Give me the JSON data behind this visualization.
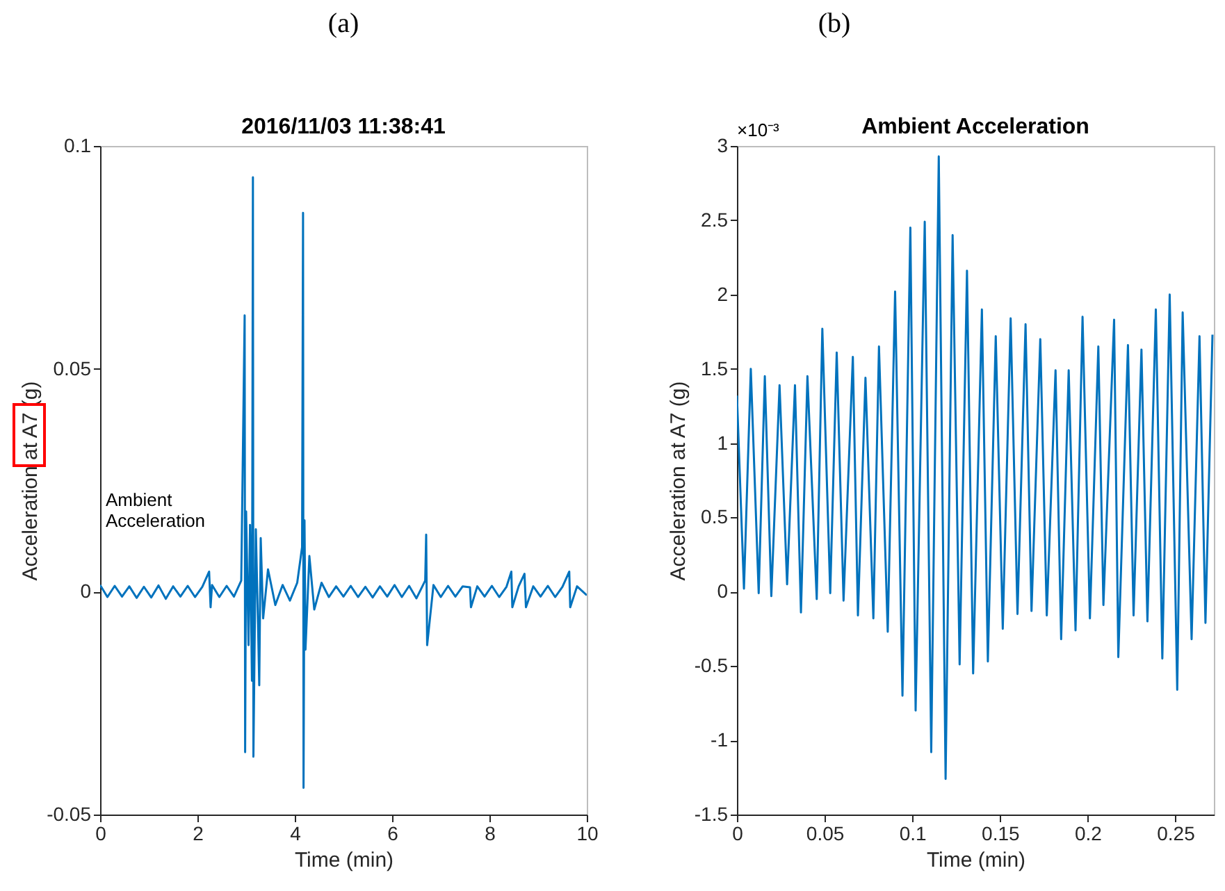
{
  "chart_data": [
    {
      "type": "line",
      "title": "2016/11/03 11:38:41",
      "xlabel": "Time (min)",
      "ylabel": "Acceleration at A7 (g)",
      "annotations": [
        "(a)",
        "Ambient Acceleration"
      ],
      "xlim": [
        0,
        10
      ],
      "xticks": [
        0,
        2,
        4,
        6,
        8,
        10
      ],
      "ylim": [
        -0.05,
        0.1
      ],
      "yticks": [
        -0.05,
        0,
        0.05,
        0.1
      ],
      "grid": false,
      "series": [
        {
          "color": "#0072bd",
          "x": [
            0,
            0.15,
            0.3,
            0.45,
            0.6,
            0.75,
            0.9,
            1.05,
            1.2,
            1.35,
            1.5,
            1.65,
            1.8,
            1.95,
            2.1,
            2.24,
            2.27,
            2.3,
            2.45,
            2.6,
            2.75,
            2.9,
            2.97,
            2.98,
            3.0,
            3.05,
            3.08,
            3.12,
            3.14,
            3.15,
            3.2,
            3.25,
            3.27,
            3.3,
            3.35,
            3.45,
            3.6,
            3.75,
            3.9,
            4.05,
            4.15,
            4.17,
            4.18,
            4.2,
            4.22,
            4.3,
            4.4,
            4.55,
            4.7,
            4.85,
            5.0,
            5.15,
            5.3,
            5.45,
            5.6,
            5.75,
            5.9,
            6.05,
            6.2,
            6.35,
            6.5,
            6.68,
            6.7,
            6.72,
            6.85,
            7.0,
            7.15,
            7.3,
            7.45,
            7.6,
            7.62,
            7.75,
            7.9,
            8.05,
            8.2,
            8.35,
            8.45,
            8.47,
            8.6,
            8.72,
            8.75,
            8.9,
            9.05,
            9.2,
            9.35,
            9.5,
            9.64,
            9.66,
            9.8,
            10
          ],
          "values": [
            0.0015,
            -0.0012,
            0.0013,
            -0.0011,
            0.0012,
            -0.0014,
            0.0011,
            -0.0013,
            0.0014,
            -0.0016,
            0.0012,
            -0.0011,
            0.0013,
            -0.0012,
            0.0011,
            0.0045,
            -0.0035,
            0.0015,
            -0.0012,
            0.0013,
            -0.0011,
            0.0025,
            0.062,
            -0.036,
            0.018,
            -0.012,
            0.015,
            -0.02,
            0.093,
            -0.037,
            0.014,
            -0.01,
            -0.021,
            0.012,
            -0.006,
            0.005,
            -0.003,
            0.0015,
            -0.002,
            0.002,
            0.01,
            0.085,
            -0.044,
            0.016,
            -0.013,
            0.008,
            -0.004,
            0.002,
            -0.0012,
            0.0012,
            -0.0011,
            0.0013,
            -0.0012,
            0.0011,
            -0.0013,
            0.0012,
            -0.0011,
            0.0015,
            -0.0012,
            0.0013,
            -0.0015,
            0.0025,
            0.0128,
            -0.012,
            0.0015,
            -0.0012,
            0.0013,
            -0.0011,
            0.0012,
            0.001,
            -0.0035,
            0.0012,
            -0.0011,
            0.0013,
            -0.0012,
            0.0011,
            0.0045,
            -0.0035,
            0.0012,
            0.004,
            -0.0035,
            0.0012,
            -0.0011,
            0.0013,
            -0.0012,
            0.0011,
            0.0045,
            -0.0035,
            0.0012,
            -0.0008
          ]
        }
      ]
    },
    {
      "type": "line",
      "title": "Ambient Acceleration",
      "xlabel": "Time (min)",
      "ylabel": "Acceleration at A7 (g)",
      "annotations": [
        "(b)",
        "×10⁻³"
      ],
      "xlim": [
        0,
        0.272
      ],
      "xticks": [
        0,
        0.05,
        0.1,
        0.15,
        0.2,
        0.25
      ],
      "ylim": [
        -1.5,
        3
      ],
      "yticks": [
        -1.5,
        -1,
        -0.5,
        0,
        0.5,
        1,
        1.5,
        2,
        2.5,
        3
      ],
      "grid": false,
      "series": [
        {
          "color": "#0072bd",
          "x": [
            0,
            0.004,
            0.0079,
            0.0124,
            0.0159,
            0.0196,
            0.0243,
            0.0286,
            0.0331,
            0.0365,
            0.0402,
            0.0455,
            0.0487,
            0.0532,
            0.0569,
            0.0608,
            0.0661,
            0.069,
            0.0733,
            0.0778,
            0.081,
            0.086,
            0.0902,
            0.0944,
            0.0989,
            0.1019,
            0.1071,
            0.1108,
            0.1151,
            0.119,
            0.123,
            0.127,
            0.1312,
            0.1347,
            0.1397,
            0.1431,
            0.1476,
            0.1516,
            0.1561,
            0.16,
            0.1646,
            0.168,
            0.173,
            0.1767,
            0.1817,
            0.1849,
            0.1892,
            0.1931,
            0.1971,
            0.2013,
            0.2061,
            0.209,
            0.2151,
            0.2175,
            0.223,
            0.2262,
            0.2307,
            0.2341,
            0.2389,
            0.2426,
            0.2468,
            0.2511,
            0.2542,
            0.2593,
            0.2638,
            0.2672,
            0.2712
          ],
          "values": [
            1.32,
            0.02,
            1.5,
            -0.01,
            1.45,
            -0.03,
            1.39,
            0.05,
            1.39,
            -0.14,
            1.45,
            -0.05,
            1.77,
            -0.01,
            1.61,
            -0.06,
            1.58,
            -0.16,
            1.44,
            -0.18,
            1.65,
            -0.27,
            2.02,
            -0.7,
            2.45,
            -0.8,
            2.49,
            -1.08,
            2.93,
            -1.26,
            2.4,
            -0.49,
            2.16,
            -0.55,
            1.9,
            -0.47,
            1.72,
            -0.25,
            1.84,
            -0.15,
            1.8,
            -0.13,
            1.7,
            -0.16,
            1.49,
            -0.32,
            1.49,
            -0.26,
            1.85,
            -0.18,
            1.65,
            -0.09,
            1.83,
            -0.44,
            1.66,
            -0.16,
            1.63,
            -0.2,
            1.9,
            -0.45,
            2.0,
            -0.66,
            1.88,
            -0.32,
            1.72,
            -0.21,
            1.73
          ]
        }
      ]
    }
  ]
}
